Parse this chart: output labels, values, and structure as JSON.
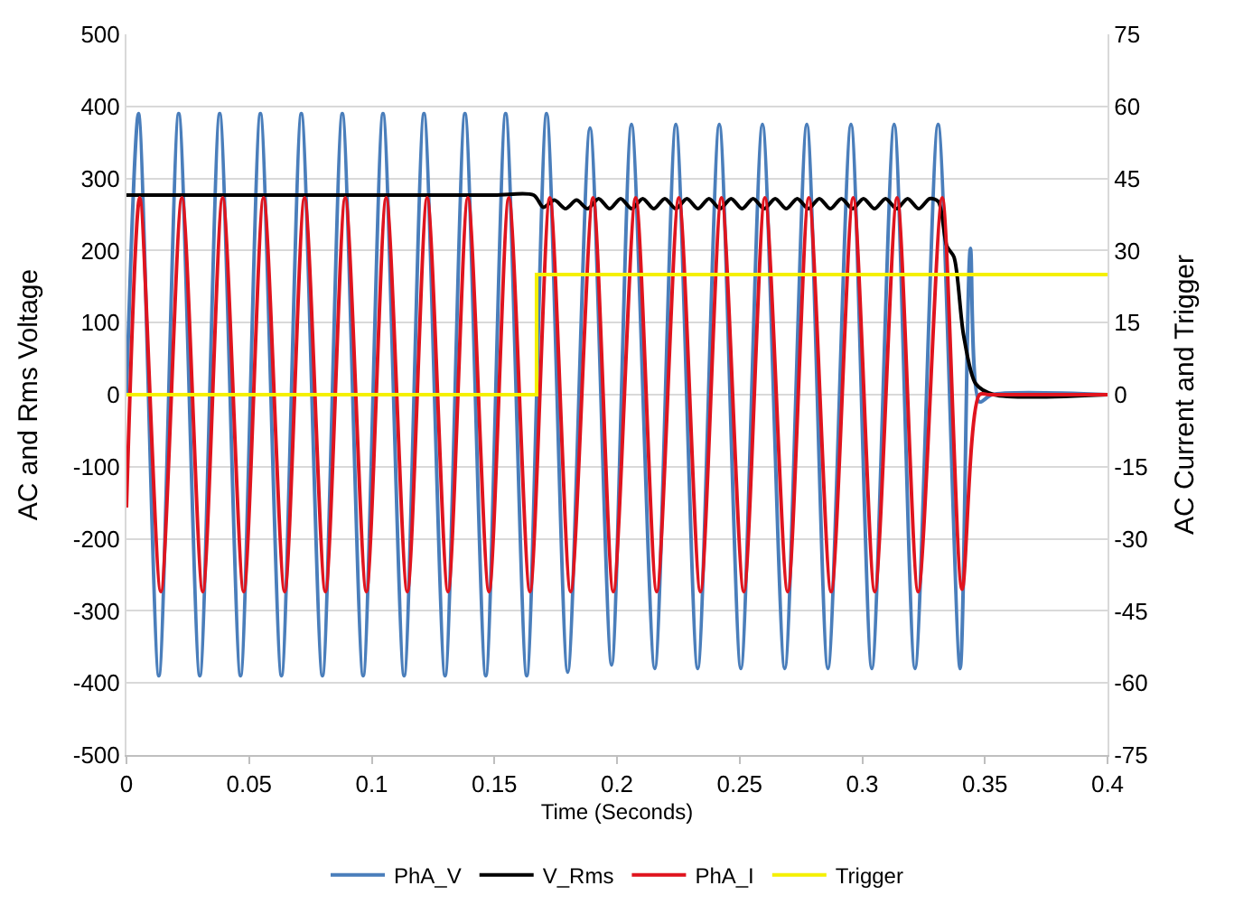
{
  "chart_data": {
    "type": "line",
    "xlabel": "Time (Seconds)",
    "ylabel": "AC and Rms Voltage",
    "y2label": "AC Current and Trigger",
    "xlim": [
      0,
      0.4
    ],
    "xticks": [
      0,
      0.05,
      0.1,
      0.15,
      0.2,
      0.25,
      0.3,
      0.35,
      0.4
    ],
    "ylim": [
      -500,
      500
    ],
    "yticks": [
      -500,
      -400,
      -300,
      -200,
      -100,
      0,
      100,
      200,
      300,
      400,
      500
    ],
    "y2lim": [
      -75,
      75
    ],
    "y2ticks": [
      -75,
      -60,
      -45,
      -30,
      -15,
      0,
      15,
      30,
      45,
      60,
      75
    ],
    "grid": "y",
    "legend": "bottom",
    "marker": "none",
    "line_style": "solid",
    "series": [
      {
        "name": "PhA_V",
        "color": "#4a7ebb",
        "x": [
          0,
          0.0049,
          0.0132,
          0.0213,
          0.0299,
          0.038,
          0.0465,
          0.0546,
          0.0632,
          0.0713,
          0.0799,
          0.088,
          0.0965,
          0.1046,
          0.1132,
          0.1213,
          0.1299,
          0.138,
          0.1465,
          0.1546,
          0.1632,
          0.1713,
          0.1799,
          0.189,
          0.1978,
          0.2059,
          0.2154,
          0.224,
          0.2329,
          0.2417,
          0.2505,
          0.2593,
          0.2684,
          0.2774,
          0.286,
          0.2954,
          0.3039,
          0.313,
          0.3215,
          0.3309,
          0.3399,
          0.3441,
          0.3478,
          0.3529,
          0.4
        ],
        "values": [
          0,
          390,
          -390,
          390,
          -390,
          390,
          -390,
          390,
          -390,
          390,
          -390,
          390,
          -390,
          390,
          -390,
          390,
          -390,
          390,
          -390,
          390,
          -390,
          390,
          -385,
          370,
          -375,
          375,
          -380,
          375,
          -380,
          375,
          -380,
          375,
          -380,
          375,
          -380,
          375,
          -380,
          375,
          -380,
          375,
          -380,
          203,
          -10,
          0,
          0
        ]
      },
      {
        "name": "V_Rms",
        "color": "#000000",
        "x": [
          0,
          0.05,
          0.1,
          0.15,
          0.166,
          0.17,
          0.1745,
          0.179,
          0.1835,
          0.188,
          0.1925,
          0.197,
          0.2015,
          0.206,
          0.2105,
          0.215,
          0.2195,
          0.224,
          0.2285,
          0.233,
          0.2375,
          0.242,
          0.2465,
          0.251,
          0.2555,
          0.26,
          0.2645,
          0.269,
          0.2735,
          0.278,
          0.2825,
          0.287,
          0.2915,
          0.296,
          0.3005,
          0.305,
          0.3095,
          0.314,
          0.3185,
          0.323,
          0.3275,
          0.331,
          0.3345,
          0.3374,
          0.3413,
          0.3463,
          0.3537,
          0.4
        ],
        "values": [
          277,
          277,
          277,
          277,
          277,
          260,
          270,
          258,
          270,
          258,
          272,
          258,
          272,
          258,
          272,
          258,
          272,
          258,
          272,
          258,
          272,
          258,
          272,
          258,
          272,
          258,
          272,
          258,
          272,
          258,
          272,
          258,
          272,
          258,
          272,
          258,
          272,
          258,
          272,
          258,
          272,
          268,
          206,
          191,
          83,
          15,
          0,
          0
        ]
      },
      {
        "name": "PhA_I",
        "color": "#e0141e",
        "axis": "y2",
        "x": [
          0,
          0.0054,
          0.014,
          0.0226,
          0.0311,
          0.0392,
          0.0478,
          0.0559,
          0.0645,
          0.0726,
          0.0811,
          0.0892,
          0.0978,
          0.1059,
          0.1145,
          0.1226,
          0.1311,
          0.1392,
          0.1478,
          0.1559,
          0.1645,
          0.1726,
          0.1811,
          0.1902,
          0.1985,
          0.2076,
          0.2162,
          0.2252,
          0.234,
          0.2426,
          0.2517,
          0.2603,
          0.2696,
          0.2782,
          0.2873,
          0.2963,
          0.3051,
          0.3142,
          0.3228,
          0.3326,
          0.3407,
          0.3478,
          0.352,
          0.4
        ],
        "values": [
          -23.5,
          41,
          -41,
          41,
          -41,
          41,
          -41,
          41,
          -41,
          41,
          -41,
          41,
          -41,
          41,
          -41,
          41,
          -41,
          41,
          -41,
          41,
          -41,
          41,
          -41,
          41,
          -41,
          41,
          -41,
          41,
          -41,
          41,
          -41,
          41,
          -41,
          41,
          -41,
          41,
          -41,
          41,
          -41,
          41,
          -40.5,
          0,
          0,
          0
        ]
      },
      {
        "name": "Trigger",
        "color": "#f5f000",
        "type": "step",
        "axis": "y2",
        "x": [
          0,
          0.1672,
          0.4
        ],
        "values": [
          0,
          25,
          25
        ]
      }
    ]
  }
}
